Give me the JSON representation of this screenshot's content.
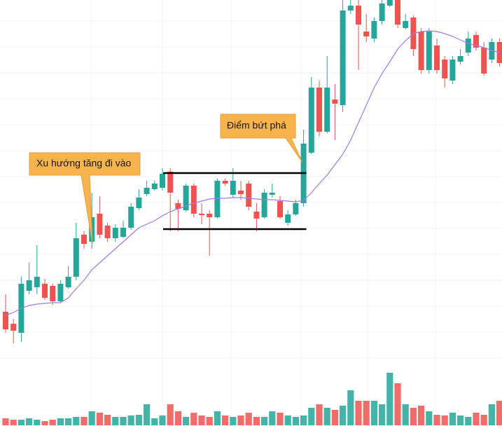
{
  "chart_data": {
    "type": "candlestick",
    "ylim": [
      0,
      520
    ],
    "up_color": "#26a69a",
    "down_color": "#ef5350",
    "open": [
      75,
      58,
      45,
      105,
      110,
      115,
      112,
      90,
      110,
      125,
      185,
      175,
      215,
      198,
      180,
      182,
      195,
      223,
      243,
      250,
      252,
      275,
      230,
      220,
      255,
      215,
      215,
      210,
      262,
      242,
      248,
      258,
      218,
      210,
      242,
      233,
      202,
      214,
      230,
      302,
      395,
      332,
      378,
      370,
      505,
      512,
      475,
      465,
      490,
      512,
      520,
      480,
      495,
      475,
      420,
      455,
      435,
      405,
      432,
      445,
      470,
      452,
      435,
      460
    ],
    "high": [
      100,
      65,
      125,
      145,
      170,
      122,
      115,
      120,
      140,
      202,
      190,
      245,
      240,
      202,
      200,
      205,
      230,
      250,
      262,
      262,
      280,
      280,
      235,
      258,
      258,
      230,
      220,
      265,
      265,
      280,
      262,
      262,
      230,
      250,
      258,
      240,
      220,
      235,
      335,
      410,
      405,
      440,
      400,
      520,
      520,
      520,
      500,
      495,
      520,
      520,
      520,
      500,
      498,
      480,
      480,
      465,
      440,
      440,
      450,
      475,
      475,
      460,
      465,
      465
    ],
    "low": [
      45,
      30,
      32,
      100,
      100,
      92,
      85,
      88,
      108,
      120,
      165,
      165,
      180,
      175,
      175,
      180,
      192,
      220,
      240,
      248,
      248,
      190,
      190,
      218,
      210,
      200,
      155,
      208,
      255,
      238,
      235,
      220,
      190,
      208,
      238,
      208,
      198,
      212,
      225,
      300,
      325,
      330,
      320,
      360,
      500,
      420,
      460,
      460,
      485,
      510,
      480,
      478,
      440,
      415,
      415,
      415,
      395,
      400,
      428,
      440,
      448,
      412,
      430,
      425
    ],
    "close": [
      50,
      48,
      115,
      120,
      125,
      95,
      90,
      115,
      125,
      180,
      172,
      210,
      185,
      180,
      195,
      195,
      225,
      238,
      252,
      258,
      272,
      245,
      222,
      255,
      215,
      213,
      210,
      262,
      258,
      262,
      243,
      225,
      208,
      245,
      245,
      210,
      214,
      230,
      315,
      395,
      332,
      395,
      372,
      505,
      512,
      485,
      468,
      490,
      515,
      520,
      485,
      490,
      450,
      420,
      475,
      420,
      408,
      435,
      440,
      465,
      452,
      415,
      460,
      430
    ],
    "ma": {
      "color": "#9c7ce8",
      "values": [
        70,
        74,
        80,
        84,
        86,
        87,
        88,
        88,
        95,
        108,
        120,
        135,
        145,
        155,
        165,
        175,
        185,
        195,
        200,
        205,
        212,
        218,
        222,
        226,
        230,
        233,
        236,
        237,
        237,
        238,
        238,
        237,
        236,
        235,
        235,
        234,
        233,
        232,
        234,
        245,
        258,
        270,
        285,
        300,
        320,
        345,
        370,
        395,
        415,
        432,
        450,
        462,
        472,
        475,
        476,
        475,
        472,
        468,
        463,
        458,
        455,
        452,
        448,
        445
      ]
    },
    "volume": {
      "ylim": [
        0,
        80
      ],
      "values": [
        10,
        8,
        8,
        10,
        8,
        6,
        8,
        10,
        10,
        12,
        12,
        20,
        18,
        15,
        12,
        12,
        14,
        15,
        30,
        10,
        14,
        30,
        20,
        12,
        18,
        14,
        12,
        20,
        14,
        12,
        14,
        18,
        12,
        12,
        20,
        18,
        14,
        12,
        14,
        25,
        30,
        25,
        22,
        28,
        50,
        35,
        35,
        35,
        30,
        75,
        60,
        30,
        25,
        28,
        20,
        15,
        14,
        18,
        14,
        12,
        18,
        15,
        30,
        35
      ]
    },
    "levels": [
      273,
      193
    ],
    "annotations": [
      {
        "text": "Xu hướng tăng đi vào"
      },
      {
        "text": "Điểm bứt phá"
      }
    ]
  }
}
